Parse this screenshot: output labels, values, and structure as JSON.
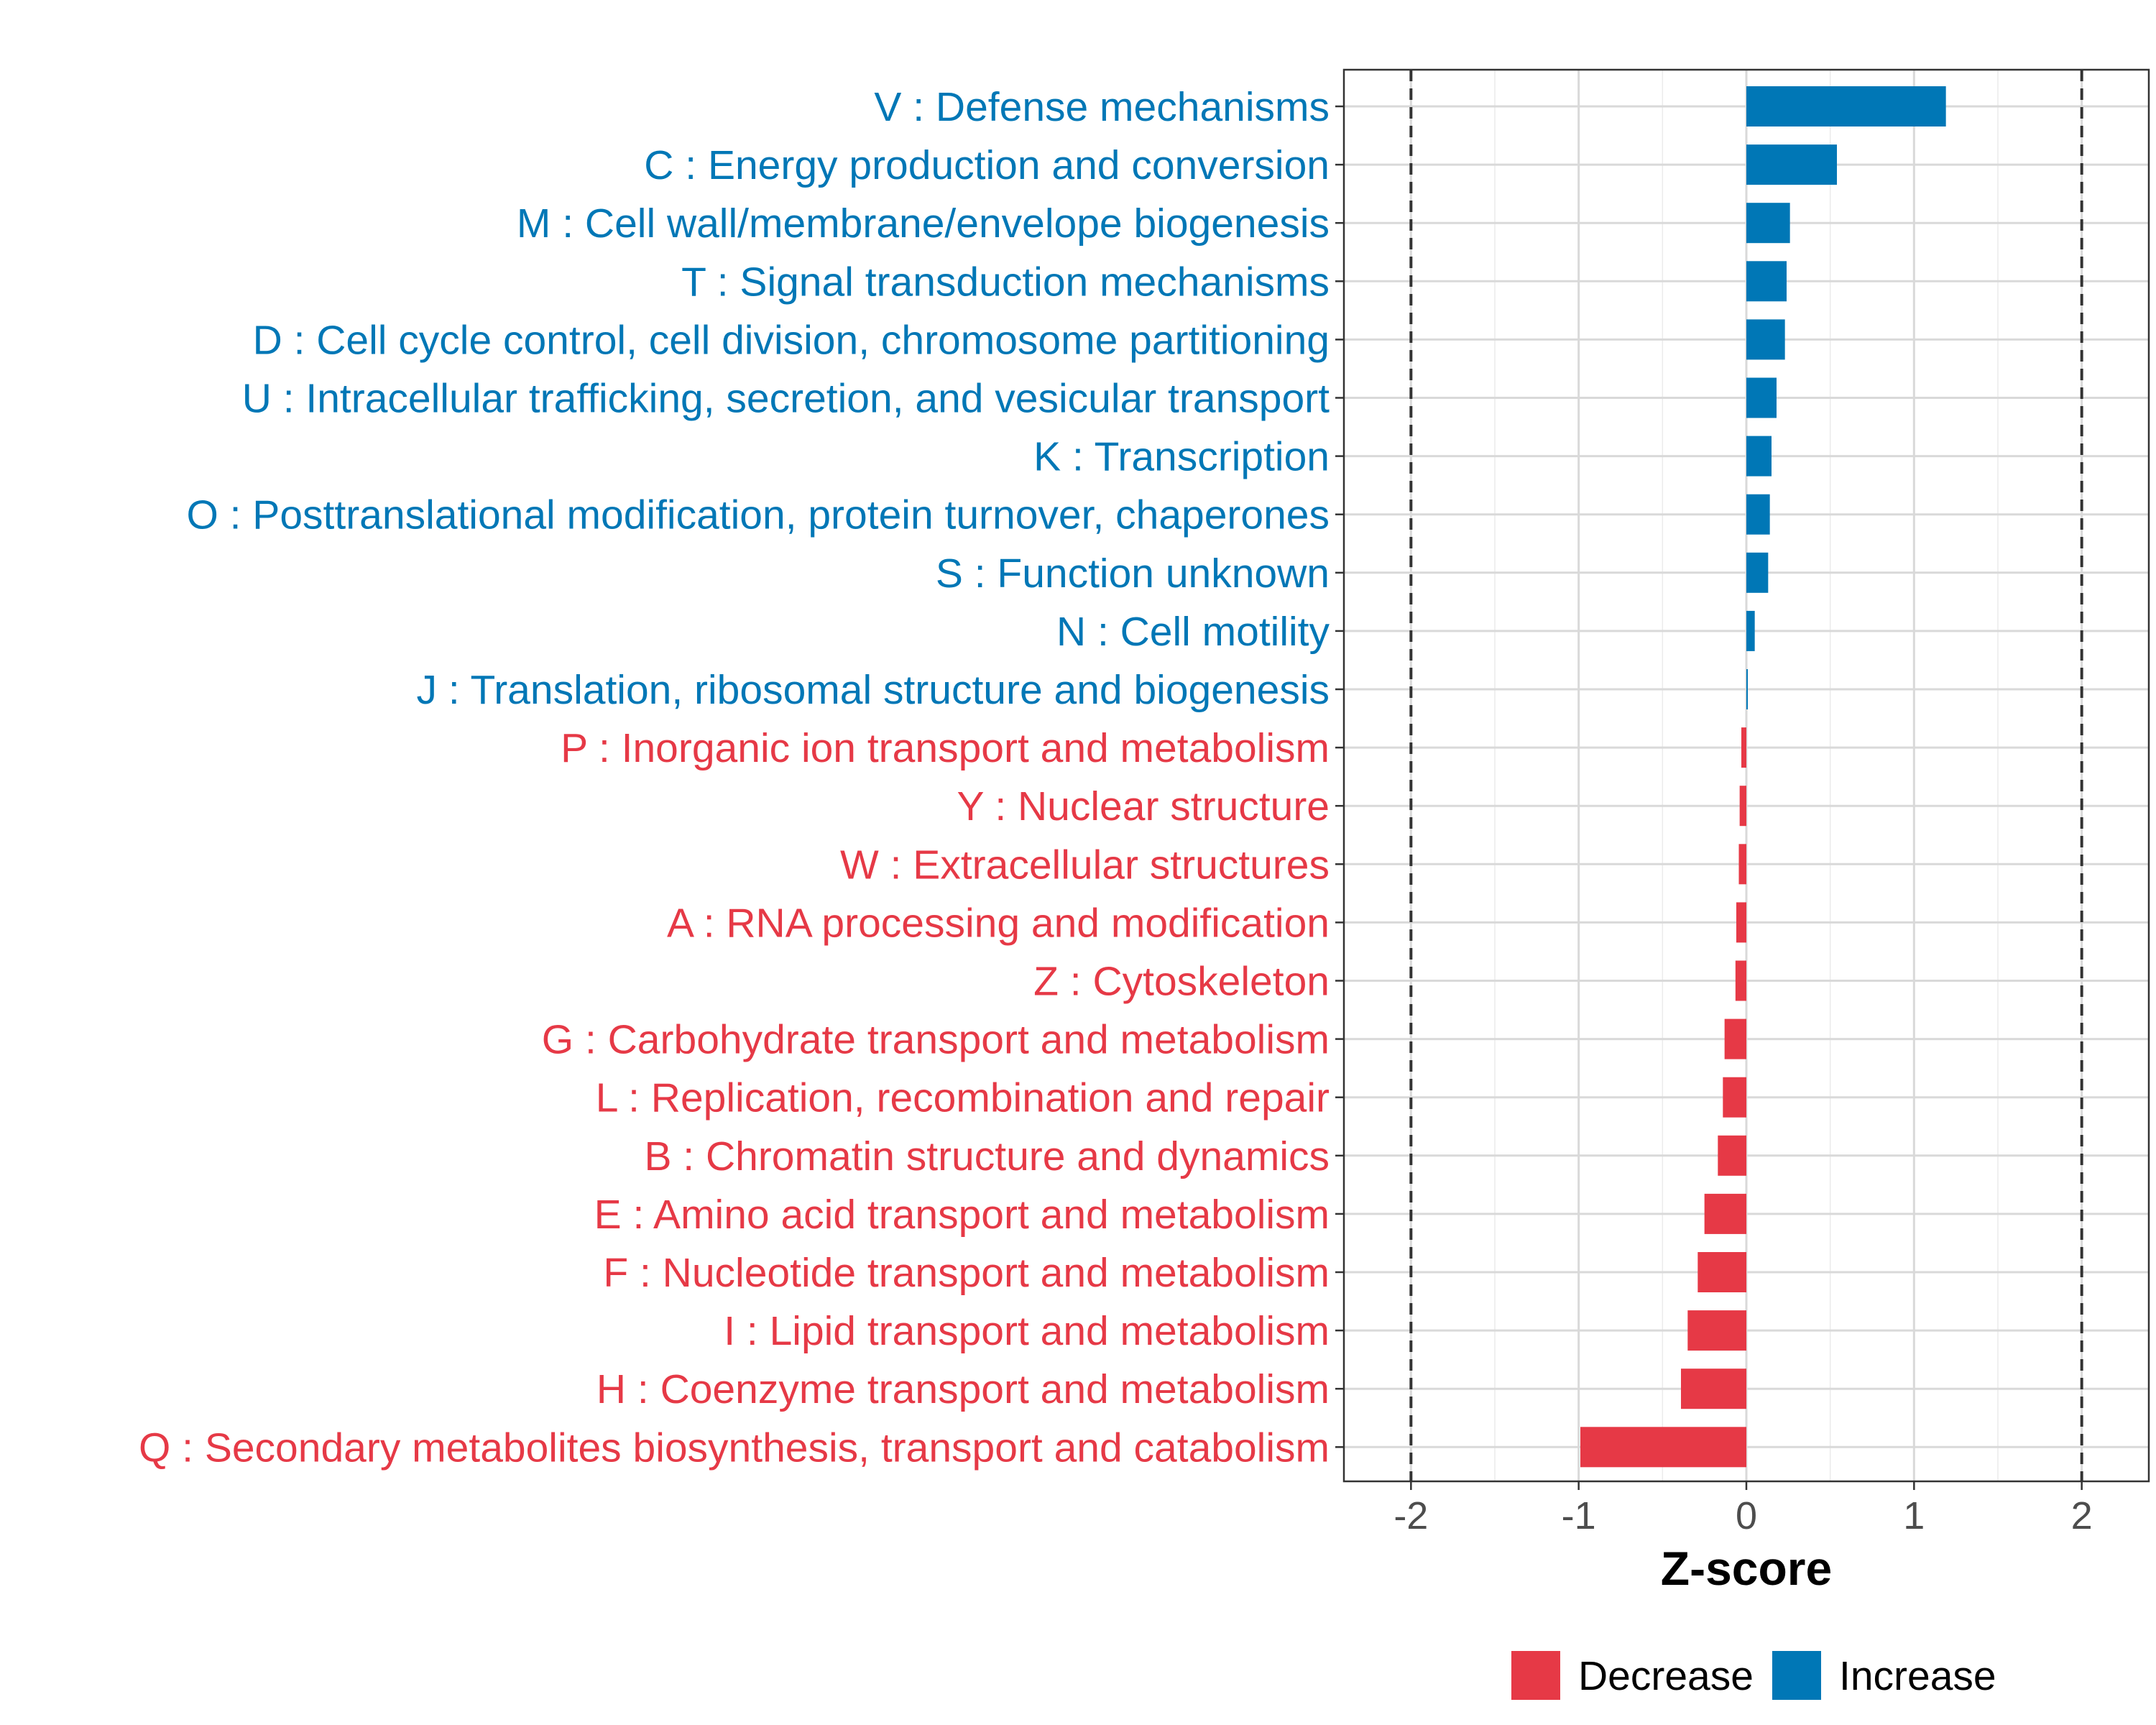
{
  "chart_data": {
    "type": "bar",
    "orientation": "horizontal",
    "title": "",
    "xlabel": "Z-score",
    "ylabel": "",
    "xlim": [
      -2.4,
      2.4
    ],
    "xticks": [
      -2,
      -1,
      0,
      1,
      2
    ],
    "xtick_labels": [
      "-2",
      "-1",
      "0",
      "1",
      "2"
    ],
    "reference_lines": [
      -2,
      2
    ],
    "grid": true,
    "colors": {
      "Decrease": "#E63946",
      "Increase": "#0077B6"
    },
    "categories": [
      "V : Defense mechanisms",
      "C : Energy production and conversion",
      "M : Cell wall/membrane/envelope biogenesis",
      "T : Signal transduction mechanisms",
      "D : Cell cycle control, cell division, chromosome partitioning",
      "U : Intracellular trafficking, secretion, and vesicular transport",
      "K : Transcription",
      "O : Posttranslational modification, protein turnover, chaperones",
      "S : Function unknown",
      "N : Cell motility",
      "J : Translation, ribosomal structure and biogenesis",
      "P : Inorganic ion transport and metabolism",
      "Y : Nuclear structure",
      "W : Extracellular structures",
      "A : RNA processing and modification",
      "Z : Cytoskeleton",
      "G : Carbohydrate transport and metabolism",
      "L : Replication, recombination and repair",
      "B : Chromatin structure and dynamics",
      "E : Amino acid transport and metabolism",
      "F : Nucleotide transport and metabolism",
      "I : Lipid transport and metabolism",
      "H : Coenzyme transport and metabolism",
      "Q : Secondary metabolites biosynthesis, transport and catabolism"
    ],
    "values": [
      1.19,
      0.54,
      0.26,
      0.24,
      0.23,
      0.18,
      0.15,
      0.14,
      0.13,
      0.05,
      0.005,
      -0.03,
      -0.04,
      -0.045,
      -0.06,
      -0.065,
      -0.13,
      -0.14,
      -0.17,
      -0.25,
      -0.29,
      -0.35,
      -0.39,
      -0.99
    ],
    "groups": [
      "Increase",
      "Increase",
      "Increase",
      "Increase",
      "Increase",
      "Increase",
      "Increase",
      "Increase",
      "Increase",
      "Increase",
      "Increase",
      "Decrease",
      "Decrease",
      "Decrease",
      "Decrease",
      "Decrease",
      "Decrease",
      "Decrease",
      "Decrease",
      "Decrease",
      "Decrease",
      "Decrease",
      "Decrease",
      "Decrease"
    ],
    "legend": {
      "position": "bottom",
      "entries": [
        {
          "label": "Decrease",
          "color": "#E63946"
        },
        {
          "label": "Increase",
          "color": "#0077B6"
        }
      ]
    }
  }
}
